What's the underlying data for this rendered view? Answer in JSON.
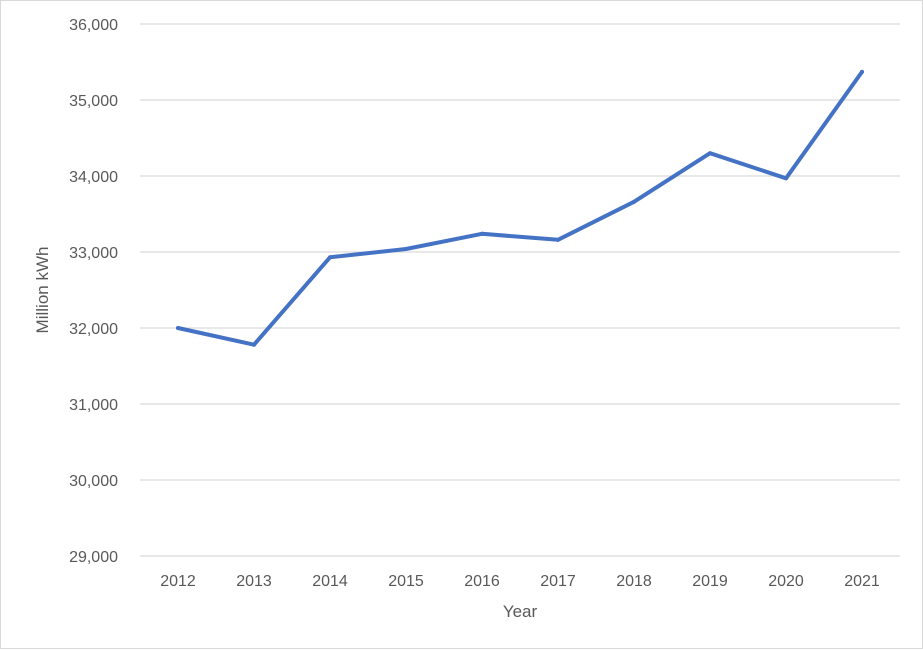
{
  "chart_data": {
    "type": "line",
    "title": "",
    "xlabel": "Year",
    "ylabel": "Million kWh",
    "x": [
      "2012",
      "2013",
      "2014",
      "2015",
      "2016",
      "2017",
      "2018",
      "2019",
      "2020",
      "2021"
    ],
    "series": [
      {
        "values": [
          32000,
          31780,
          32930,
          33040,
          33240,
          33160,
          33660,
          34300,
          33970,
          35370
        ],
        "color": "#4472c4"
      }
    ],
    "ylim": [
      29000,
      36000
    ],
    "yticks": [
      29000,
      30000,
      31000,
      32000,
      33000,
      34000,
      35000,
      36000
    ],
    "ytick_labels": [
      "29,000",
      "30,000",
      "31,000",
      "32,000",
      "33,000",
      "34,000",
      "35,000",
      "36,000"
    ],
    "grid": "horizontal",
    "gridline_color": "#d9d9d9",
    "legend": "none"
  }
}
